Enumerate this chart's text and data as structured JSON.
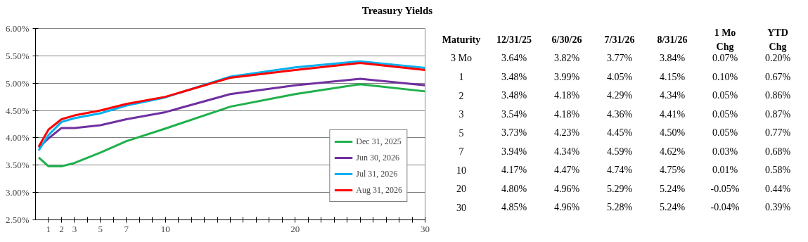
{
  "chart_data": [
    {
      "type": "line",
      "title": "Treasury Yields",
      "x": [
        0.25,
        1,
        2,
        3,
        5,
        7,
        10,
        15,
        20,
        25,
        30
      ],
      "series": [
        {
          "name": "Dec 31, 2025",
          "color": "#1fb04b",
          "values": [
            3.64,
            3.48,
            3.48,
            3.54,
            3.73,
            3.94,
            4.17,
            4.57,
            4.8,
            4.98,
            4.85
          ]
        },
        {
          "name": "Jun 30, 2026",
          "color": "#7030a0",
          "values": [
            3.82,
            3.99,
            4.18,
            4.18,
            4.23,
            4.34,
            4.47,
            4.8,
            4.96,
            5.08,
            4.96
          ]
        },
        {
          "name": "Jul 31, 2026",
          "color": "#00b0f0",
          "values": [
            3.77,
            4.05,
            4.29,
            4.36,
            4.45,
            4.59,
            4.74,
            5.12,
            5.29,
            5.4,
            5.28
          ]
        },
        {
          "name": "Aug 31, 2026",
          "color": "#ff0000",
          "values": [
            3.84,
            4.15,
            4.34,
            4.41,
            4.5,
            4.62,
            4.75,
            5.1,
            5.24,
            5.37,
            5.24
          ]
        }
      ],
      "xlim": [
        0,
        30
      ],
      "xticks": [
        1,
        2,
        3,
        {
          "value": 4,
          "label": null
        },
        5,
        {
          "value": 6,
          "label": null
        },
        7,
        {
          "value": 8,
          "label": null
        },
        {
          "value": 9,
          "label": null
        },
        10,
        {
          "value": 11,
          "label": null
        },
        {
          "value": 12,
          "label": null
        },
        {
          "value": 13,
          "label": null
        },
        {
          "value": 14,
          "label": null
        },
        {
          "value": 15,
          "label": null
        },
        {
          "value": 16,
          "label": null
        },
        {
          "value": 17,
          "label": null
        },
        {
          "value": 18,
          "label": null
        },
        {
          "value": 19,
          "label": null
        },
        20,
        {
          "value": 21,
          "label": null
        },
        {
          "value": 22,
          "label": null
        },
        {
          "value": 23,
          "label": null
        },
        {
          "value": 24,
          "label": null
        },
        {
          "value": 25,
          "label": null
        },
        {
          "value": 26,
          "label": null
        },
        {
          "value": 27,
          "label": null
        },
        {
          "value": 28,
          "label": null
        },
        {
          "value": 29,
          "label": null
        },
        30
      ],
      "ylim": [
        2.5,
        6.0
      ],
      "yticks": [
        {
          "value": 2.5,
          "label": "2.50%"
        },
        {
          "value": 3.0,
          "label": "3.00%"
        },
        {
          "value": 3.5,
          "label": "3.50%"
        },
        {
          "value": 4.0,
          "label": "4.00%"
        },
        {
          "value": 4.5,
          "label": "4.50%"
        },
        {
          "value": 5.0,
          "label": "5.00%"
        },
        {
          "value": 5.5,
          "label": "5.50%"
        },
        {
          "value": 6.0,
          "label": "6.00%"
        }
      ],
      "grid": "y",
      "legend": "bottom right",
      "marker": "none",
      "line_style": "solid"
    },
    {
      "type": "other",
      "categories": [
        "Maturity",
        "12/31/25",
        "6/30/26",
        "7/31/26",
        "8/31/26",
        "1 Mo\nChg",
        "YTD\nChg"
      ],
      "y_categories": [
        "3 Mo",
        "1",
        "2",
        "3",
        "5",
        "7",
        "10",
        "20",
        "30"
      ],
      "cell_labels": [
        [
          "3.64%",
          "3.82%",
          "3.77%",
          "3.84%",
          "0.07%",
          "0.20%"
        ],
        [
          "3.48%",
          "3.99%",
          "4.05%",
          "4.15%",
          "0.10%",
          "0.67%"
        ],
        [
          "3.48%",
          "4.18%",
          "4.29%",
          "4.34%",
          "0.05%",
          "0.86%"
        ],
        [
          "3.54%",
          "4.18%",
          "4.36%",
          "4.41%",
          "0.05%",
          "0.87%"
        ],
        [
          "3.73%",
          "4.23%",
          "4.45%",
          "4.50%",
          "0.05%",
          "0.77%"
        ],
        [
          "3.94%",
          "4.34%",
          "4.59%",
          "4.62%",
          "0.03%",
          "0.68%"
        ],
        [
          "4.17%",
          "4.47%",
          "4.74%",
          "4.75%",
          "0.01%",
          "0.58%"
        ],
        [
          "4.80%",
          "4.96%",
          "5.29%",
          "5.24%",
          "-0.05%",
          "0.44%"
        ],
        [
          "4.85%",
          "4.96%",
          "5.28%",
          "5.24%",
          "-0.04%",
          "0.39%"
        ]
      ]
    }
  ]
}
